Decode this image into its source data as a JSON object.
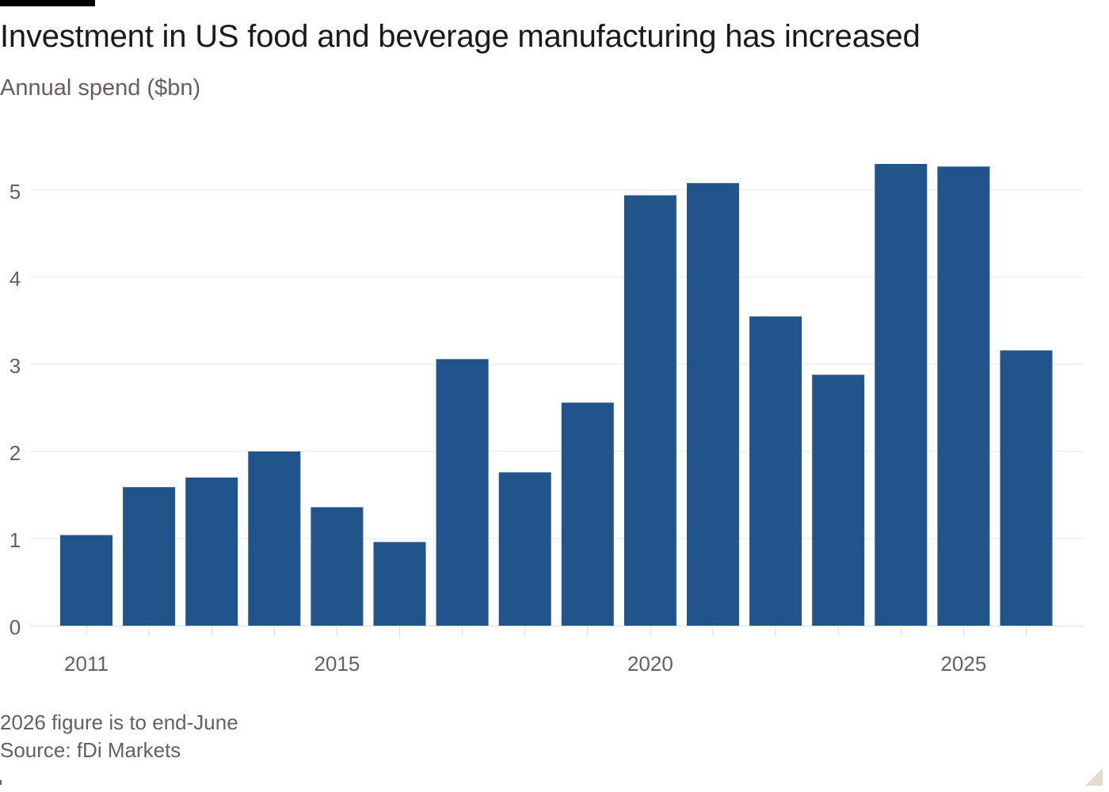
{
  "title": "Investment in US food and beverage manufacturing has increased",
  "subtitle": "Annual spend ($bn)",
  "note": "2026 figure is to end-June",
  "source": "Source: fDi Markets",
  "colors": {
    "bar": "#20548b",
    "grid": "#e9e6e3",
    "axis": "#e0dcd8",
    "tick_text": "#66605c"
  },
  "chart_data": {
    "type": "bar",
    "title": "Investment in US food and beverage manufacturing has increased",
    "subtitle": "Annual spend ($bn)",
    "categories": [
      "2011",
      "2012",
      "2013",
      "2014",
      "2015",
      "2016",
      "2017",
      "2018",
      "2019",
      "2020",
      "2021",
      "2022",
      "2023",
      "2024",
      "2025",
      "2026"
    ],
    "values": [
      1.04,
      1.59,
      1.7,
      2.0,
      1.36,
      0.96,
      3.06,
      1.76,
      2.56,
      4.94,
      5.08,
      3.55,
      2.88,
      5.3,
      5.27,
      3.16
    ],
    "x_tick_labels": [
      "2011",
      "2015",
      "2020",
      "2025"
    ],
    "y_ticks": [
      0,
      1,
      2,
      3,
      4,
      5
    ],
    "ylim": [
      0,
      5.45
    ],
    "xlabel": "",
    "ylabel": "",
    "grid": true
  }
}
